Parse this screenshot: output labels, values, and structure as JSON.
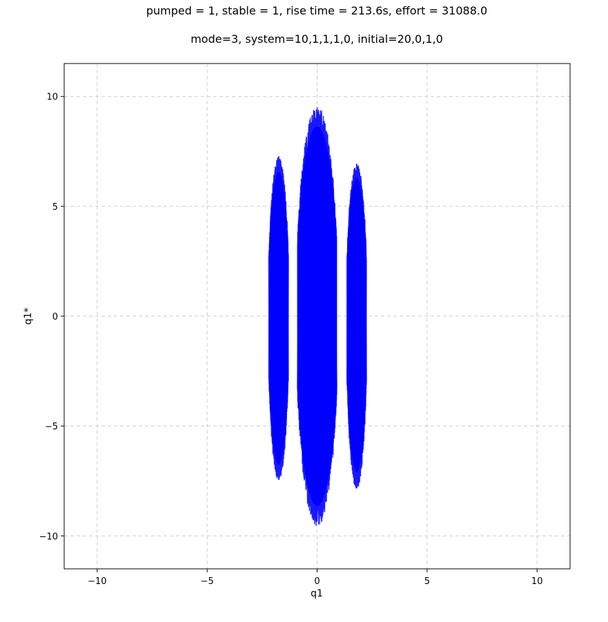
{
  "chart_data": {
    "type": "line",
    "title": "pumped = 1, stable = 1, rise time = 213.6s, effort = 31088.0",
    "subtitle": "mode=3, system=10,1,1,1,0, initial=20,0,1,0",
    "xlabel": "q1",
    "ylabel": "q1*",
    "xlim": [
      -11.5,
      11.5
    ],
    "ylim": [
      -11.5,
      11.5
    ],
    "xticks": [
      -10,
      -5,
      0,
      5,
      10
    ],
    "yticks": [
      -10,
      -5,
      0,
      5,
      10
    ],
    "xtick_labels": [
      "−10",
      "−5",
      "0",
      "5",
      "10"
    ],
    "ytick_labels": [
      "−10",
      "−5",
      "0",
      "5",
      "10"
    ],
    "grid": true,
    "legend": "none",
    "series": [
      {
        "color": "#0000ff",
        "description_values": {
          "x_range": [
            -2.2,
            2.3
          ],
          "y_range": [
            -9.6,
            9.6
          ]
        },
        "lobes": [
          {
            "x_center": -1.75,
            "x_halfwidth": 0.45,
            "y_max": 7.3,
            "y_min": -7.5
          },
          {
            "x_center": 0.0,
            "x_halfwidth": 0.9,
            "y_max": 9.6,
            "y_min": -9.6
          },
          {
            "x_center": 1.8,
            "x_halfwidth": 0.45,
            "y_max": 7.0,
            "y_min": -7.9
          }
        ]
      }
    ]
  },
  "colors": {
    "series": "#0000ff",
    "grid": "#cccccc",
    "axes": "#000000",
    "background": "#ffffff"
  }
}
